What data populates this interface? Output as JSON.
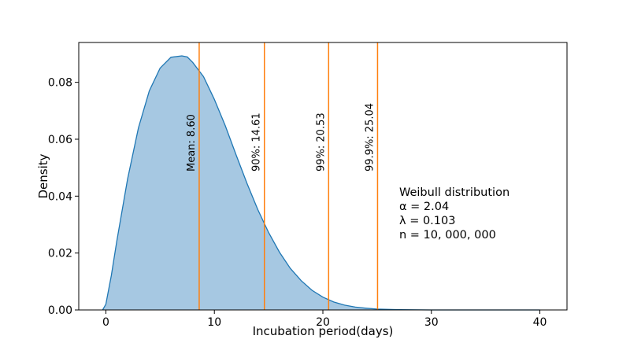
{
  "chart_data": {
    "type": "area",
    "xlabel": "Incubation period(days)",
    "ylabel": "Density",
    "xlim": [
      -2.5,
      42.5
    ],
    "ylim": [
      0,
      0.094
    ],
    "x_ticks": [
      0,
      10,
      20,
      30,
      40
    ],
    "y_ticks": [
      0.0,
      0.02,
      0.04,
      0.06,
      0.08
    ],
    "x_tick_labels": [
      "0",
      "10",
      "20",
      "30",
      "40"
    ],
    "y_tick_labels": [
      "0.00",
      "0.02",
      "0.04",
      "0.06",
      "0.08"
    ],
    "grid": false,
    "series": [
      {
        "x": [
          -0.3,
          0,
          0.5,
          1,
          2,
          3,
          4,
          5,
          6,
          7,
          7.5,
          8,
          9,
          10,
          11,
          12,
          13,
          14,
          15,
          16,
          17,
          18,
          19,
          20,
          21,
          22,
          23,
          24,
          25,
          27,
          30,
          35,
          40
        ],
        "y": [
          0.0,
          0.002,
          0.012,
          0.024,
          0.046,
          0.064,
          0.077,
          0.085,
          0.0888,
          0.0893,
          0.0889,
          0.087,
          0.082,
          0.074,
          0.0648,
          0.0545,
          0.0445,
          0.0353,
          0.0272,
          0.0203,
          0.0146,
          0.0103,
          0.0069,
          0.0045,
          0.0028,
          0.0017,
          0.001,
          0.0006,
          0.0003,
          0.0001,
          0.0,
          0.0,
          0.0
        ],
        "color": "#1f77b4",
        "fill_color": "#a6c8e2"
      }
    ],
    "vlines": [
      {
        "x": 8.6,
        "label": "Mean: 8.60"
      },
      {
        "x": 14.61,
        "label": "90%: 14.61"
      },
      {
        "x": 20.53,
        "label": "99%: 20.53"
      },
      {
        "x": 25.04,
        "label": "99.9%: 25.04"
      }
    ],
    "vline_color": "#ff7f0e",
    "annotation": [
      "Weibull distribution",
      "α = 2.04",
      "λ = 0.103",
      "n = 10, 000, 000"
    ]
  }
}
